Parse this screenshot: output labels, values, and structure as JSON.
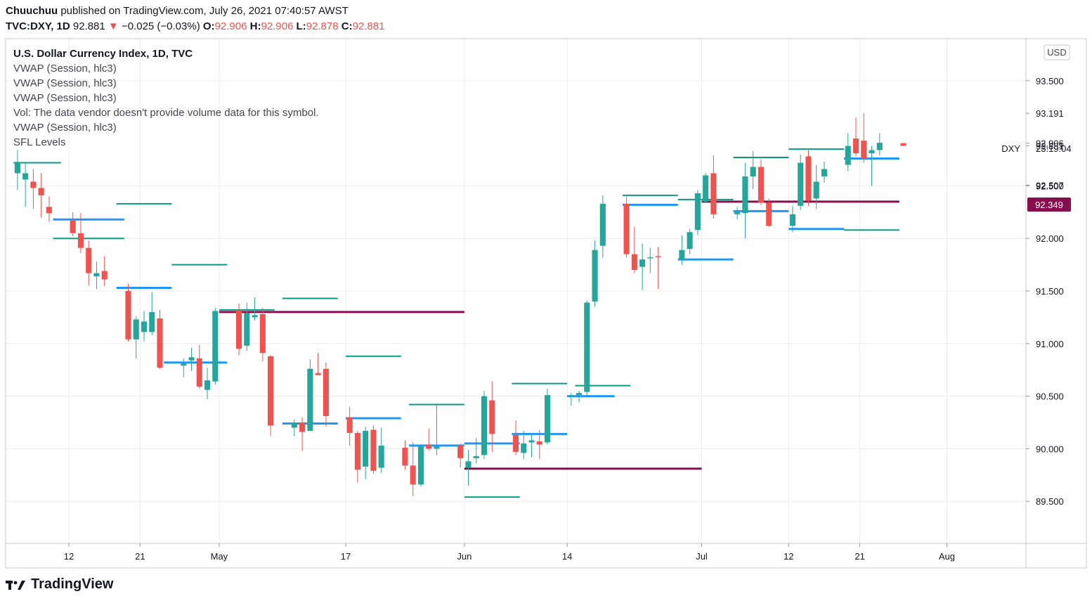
{
  "header": {
    "author": "Chuuchuu",
    "published_text": "published on TradingView.com, July 26, 2021 07:40:57 AWST",
    "symbol": "TVC:DXY, 1D",
    "last": "92.881",
    "change_arrow": "▼",
    "change": "−0.025 (−0.03%)",
    "o_label": "O:",
    "o_value": "92.906",
    "h_label": "H:",
    "h_value": "92.906",
    "l_label": "L:",
    "l_value": "92.878",
    "c_label": "C:",
    "c_value": "92.881"
  },
  "legend": [
    "U.S. Dollar Currency Index, 1D, TVC",
    "VWAP (Session, hlc3)",
    "VWAP (Session, hlc3)",
    "VWAP (Session, hlc3)",
    "Vol: The data vendor doesn't provide volume data for this symbol.",
    "VWAP (Session, hlc3)",
    "SFL Levels"
  ],
  "footer": {
    "brand": "TradingView",
    "logo_icon": "tradingview-logo-icon"
  },
  "colors": {
    "up": "#26a69a",
    "down": "#ef5350",
    "vwap_green": "#089981",
    "vwap_blue": "#2196f3",
    "vwap_maroon": "#880e4f",
    "grid": "#e9ecf0"
  },
  "chart_data": {
    "type": "candlestick",
    "currency_label": "USD",
    "symbol_label": "DXY",
    "countdown": "23:19:04",
    "current_price_label": "92.349",
    "ylim": [
      89.1,
      93.9
    ],
    "yticks": [
      "93.500",
      "93.191",
      "92.906",
      "92.881",
      "92.507",
      "92.500",
      "92.000",
      "91.500",
      "91.000",
      "90.500",
      "90.000",
      "89.500"
    ],
    "xlim": [
      "2021-04-04",
      "2021-08-11"
    ],
    "xticks": [
      {
        "date": "2021-04-12",
        "label": "12"
      },
      {
        "date": "2021-04-21",
        "label": "21"
      },
      {
        "date": "2021-05-01",
        "label": "May"
      },
      {
        "date": "2021-05-17",
        "label": "17"
      },
      {
        "date": "2021-06-01",
        "label": "Jun"
      },
      {
        "date": "2021-06-14",
        "label": "14"
      },
      {
        "date": "2021-07-01",
        "label": "Jul"
      },
      {
        "date": "2021-07-12",
        "label": "12"
      },
      {
        "date": "2021-07-21",
        "label": "21"
      },
      {
        "date": "2021-08-01",
        "label": "Aug"
      }
    ],
    "candles": [
      {
        "date": "2021-04-05",
        "o": 92.62,
        "h": 92.84,
        "l": 92.46,
        "c": 92.72
      },
      {
        "date": "2021-04-06",
        "o": 92.56,
        "h": 92.72,
        "l": 92.3,
        "c": 92.62
      },
      {
        "date": "2021-04-07",
        "o": 92.54,
        "h": 92.66,
        "l": 92.28,
        "c": 92.48
      },
      {
        "date": "2021-04-08",
        "o": 92.48,
        "h": 92.62,
        "l": 92.2,
        "c": 92.41
      },
      {
        "date": "2021-04-09",
        "o": 92.3,
        "h": 92.4,
        "l": 92.16,
        "c": 92.24
      },
      {
        "date": "2021-04-12",
        "o": 92.17,
        "h": 92.25,
        "l": 92.02,
        "c": 92.05
      },
      {
        "date": "2021-04-13",
        "o": 92.05,
        "h": 92.24,
        "l": 91.86,
        "c": 91.91
      },
      {
        "date": "2021-04-14",
        "o": 91.91,
        "h": 91.98,
        "l": 91.55,
        "c": 91.67
      },
      {
        "date": "2021-04-15",
        "o": 91.64,
        "h": 91.78,
        "l": 91.52,
        "c": 91.67
      },
      {
        "date": "2021-04-16",
        "o": 91.69,
        "h": 91.83,
        "l": 91.55,
        "c": 91.61
      },
      {
        "date": "2021-04-19",
        "o": 91.5,
        "h": 91.57,
        "l": 91.02,
        "c": 91.04
      },
      {
        "date": "2021-04-20",
        "o": 91.04,
        "h": 91.26,
        "l": 90.86,
        "c": 91.23
      },
      {
        "date": "2021-04-21",
        "o": 91.11,
        "h": 91.31,
        "l": 91.02,
        "c": 91.21
      },
      {
        "date": "2021-04-22",
        "o": 91.11,
        "h": 91.49,
        "l": 91.08,
        "c": 91.3
      },
      {
        "date": "2021-04-23",
        "o": 91.24,
        "h": 91.32,
        "l": 90.76,
        "c": 90.77
      },
      {
        "date": "2021-04-26",
        "o": 90.79,
        "h": 90.86,
        "l": 90.68,
        "c": 90.81
      },
      {
        "date": "2021-04-27",
        "o": 90.84,
        "h": 90.96,
        "l": 90.74,
        "c": 90.87
      },
      {
        "date": "2021-04-28",
        "o": 90.86,
        "h": 90.99,
        "l": 90.57,
        "c": 90.59
      },
      {
        "date": "2021-04-29",
        "o": 90.56,
        "h": 90.77,
        "l": 90.47,
        "c": 90.65
      },
      {
        "date": "2021-04-30",
        "o": 90.64,
        "h": 91.34,
        "l": 90.61,
        "c": 91.31
      },
      {
        "date": "2021-05-03",
        "o": 91.32,
        "h": 91.38,
        "l": 90.89,
        "c": 90.95
      },
      {
        "date": "2021-05-04",
        "o": 90.98,
        "h": 91.39,
        "l": 90.93,
        "c": 91.29
      },
      {
        "date": "2021-05-05",
        "o": 91.25,
        "h": 91.44,
        "l": 91.22,
        "c": 91.27
      },
      {
        "date": "2021-05-06",
        "o": 91.28,
        "h": 91.34,
        "l": 90.83,
        "c": 90.91
      },
      {
        "date": "2021-05-07",
        "o": 90.88,
        "h": 90.89,
        "l": 90.12,
        "c": 90.22
      },
      {
        "date": "2021-05-10",
        "o": 90.2,
        "h": 90.28,
        "l": 90.12,
        "c": 90.25
      },
      {
        "date": "2021-05-11",
        "o": 90.25,
        "h": 90.3,
        "l": 89.98,
        "c": 90.16
      },
      {
        "date": "2021-05-12",
        "o": 90.17,
        "h": 90.85,
        "l": 90.17,
        "c": 90.76
      },
      {
        "date": "2021-05-13",
        "o": 90.72,
        "h": 90.91,
        "l": 90.7,
        "c": 90.7
      },
      {
        "date": "2021-05-14",
        "o": 90.76,
        "h": 90.82,
        "l": 90.21,
        "c": 90.31
      },
      {
        "date": "2021-05-17",
        "o": 90.3,
        "h": 90.4,
        "l": 90.03,
        "c": 90.15
      },
      {
        "date": "2021-05-18",
        "o": 90.15,
        "h": 90.17,
        "l": 89.68,
        "c": 89.8
      },
      {
        "date": "2021-05-19",
        "o": 89.83,
        "h": 90.21,
        "l": 89.71,
        "c": 90.17
      },
      {
        "date": "2021-05-20",
        "o": 90.18,
        "h": 90.22,
        "l": 89.76,
        "c": 89.79
      },
      {
        "date": "2021-05-21",
        "o": 89.82,
        "h": 90.2,
        "l": 89.77,
        "c": 90.03
      },
      {
        "date": "2021-05-24",
        "o": 90.01,
        "h": 90.08,
        "l": 89.8,
        "c": 89.84
      },
      {
        "date": "2021-05-25",
        "o": 89.84,
        "h": 90.06,
        "l": 89.55,
        "c": 89.66
      },
      {
        "date": "2021-05-26",
        "o": 89.66,
        "h": 90.04,
        "l": 89.64,
        "c": 90.02
      },
      {
        "date": "2021-05-27",
        "o": 90.04,
        "h": 90.19,
        "l": 89.98,
        "c": 90.0
      },
      {
        "date": "2021-05-28",
        "o": 90.0,
        "h": 90.43,
        "l": 89.94,
        "c": 90.02
      },
      {
        "date": "2021-05-31",
        "o": 90.03,
        "h": 90.05,
        "l": 89.82,
        "c": 89.91
      },
      {
        "date": "2021-06-01",
        "o": 89.82,
        "h": 89.99,
        "l": 89.65,
        "c": 89.88
      },
      {
        "date": "2021-06-02",
        "o": 89.91,
        "h": 90.1,
        "l": 89.86,
        "c": 89.93
      },
      {
        "date": "2021-06-03",
        "o": 89.94,
        "h": 90.55,
        "l": 89.9,
        "c": 90.5
      },
      {
        "date": "2021-06-04",
        "o": 90.46,
        "h": 90.64,
        "l": 89.97,
        "c": 90.14
      },
      {
        "date": "2021-06-07",
        "o": 90.13,
        "h": 90.27,
        "l": 89.94,
        "c": 89.97
      },
      {
        "date": "2021-06-08",
        "o": 89.96,
        "h": 90.17,
        "l": 89.9,
        "c": 90.05
      },
      {
        "date": "2021-06-09",
        "o": 90.06,
        "h": 90.13,
        "l": 89.92,
        "c": 90.08
      },
      {
        "date": "2021-06-10",
        "o": 90.07,
        "h": 90.18,
        "l": 89.9,
        "c": 90.04
      },
      {
        "date": "2021-06-11",
        "o": 90.06,
        "h": 90.57,
        "l": 90.04,
        "c": 90.51
      },
      {
        "date": "2021-06-14",
        "o": 90.5,
        "h": 90.53,
        "l": 90.41,
        "c": 90.51
      },
      {
        "date": "2021-06-15",
        "o": 90.51,
        "h": 90.55,
        "l": 90.44,
        "c": 90.53
      },
      {
        "date": "2021-06-16",
        "o": 90.54,
        "h": 91.41,
        "l": 90.5,
        "c": 91.39
      },
      {
        "date": "2021-06-17",
        "o": 91.4,
        "h": 91.98,
        "l": 91.35,
        "c": 91.89
      },
      {
        "date": "2021-06-18",
        "o": 91.93,
        "h": 92.41,
        "l": 91.82,
        "c": 92.33
      },
      {
        "date": "2021-06-21",
        "o": 92.33,
        "h": 92.4,
        "l": 91.82,
        "c": 91.85
      },
      {
        "date": "2021-06-22",
        "o": 91.85,
        "h": 92.11,
        "l": 91.67,
        "c": 91.7
      },
      {
        "date": "2021-06-23",
        "o": 91.73,
        "h": 91.95,
        "l": 91.51,
        "c": 91.8
      },
      {
        "date": "2021-06-24",
        "o": 91.81,
        "h": 91.91,
        "l": 91.67,
        "c": 91.82
      },
      {
        "date": "2021-06-25",
        "o": 91.83,
        "h": 91.92,
        "l": 91.52,
        "c": 91.82
      },
      {
        "date": "2021-06-28",
        "o": 91.8,
        "h": 92.03,
        "l": 91.75,
        "c": 91.89
      },
      {
        "date": "2021-06-29",
        "o": 91.9,
        "h": 92.09,
        "l": 91.85,
        "c": 92.06
      },
      {
        "date": "2021-06-30",
        "o": 92.08,
        "h": 92.46,
        "l": 92.03,
        "c": 92.43
      },
      {
        "date": "2021-07-01",
        "o": 92.35,
        "h": 92.62,
        "l": 92.34,
        "c": 92.6
      },
      {
        "date": "2021-07-02",
        "o": 92.62,
        "h": 92.79,
        "l": 92.19,
        "c": 92.23
      },
      {
        "date": "2021-07-05",
        "o": 92.23,
        "h": 92.3,
        "l": 92.18,
        "c": 92.25
      },
      {
        "date": "2021-07-06",
        "o": 92.24,
        "h": 92.72,
        "l": 92.0,
        "c": 92.59
      },
      {
        "date": "2021-07-07",
        "o": 92.59,
        "h": 92.83,
        "l": 92.47,
        "c": 92.68
      },
      {
        "date": "2021-07-08",
        "o": 92.68,
        "h": 92.75,
        "l": 92.32,
        "c": 92.34
      },
      {
        "date": "2021-07-09",
        "o": 92.34,
        "h": 92.38,
        "l": 92.11,
        "c": 92.12
      },
      {
        "date": "2021-07-12",
        "o": 92.12,
        "h": 92.31,
        "l": 92.06,
        "c": 92.23
      },
      {
        "date": "2021-07-13",
        "o": 92.31,
        "h": 92.8,
        "l": 92.27,
        "c": 92.72
      },
      {
        "date": "2021-07-14",
        "o": 92.78,
        "h": 92.84,
        "l": 92.31,
        "c": 92.36
      },
      {
        "date": "2021-07-15",
        "o": 92.38,
        "h": 92.7,
        "l": 92.28,
        "c": 92.54
      },
      {
        "date": "2021-07-16",
        "o": 92.59,
        "h": 92.73,
        "l": 92.53,
        "c": 92.66
      },
      {
        "date": "2021-07-19",
        "o": 92.7,
        "h": 93.0,
        "l": 92.64,
        "c": 92.88
      },
      {
        "date": "2021-07-20",
        "o": 92.95,
        "h": 93.15,
        "l": 92.78,
        "c": 92.81
      },
      {
        "date": "2021-07-21",
        "o": 92.93,
        "h": 93.19,
        "l": 92.72,
        "c": 92.76
      },
      {
        "date": "2021-07-22",
        "o": 92.81,
        "h": 92.88,
        "l": 92.5,
        "c": 92.84
      },
      {
        "date": "2021-07-23",
        "o": 92.84,
        "h": 93.0,
        "l": 92.79,
        "c": 92.91
      },
      {
        "date": "2021-07-26",
        "o": 92.906,
        "h": 92.906,
        "l": 92.878,
        "c": 92.881
      }
    ],
    "vwap_lines": [
      {
        "color": "green",
        "from": "2021-04-05",
        "to": "2021-04-10",
        "y": 92.72
      },
      {
        "color": "green",
        "from": "2021-04-10",
        "to": "2021-04-18",
        "y": 92.0
      },
      {
        "color": "green",
        "from": "2021-04-18",
        "to": "2021-04-24",
        "y": 92.33
      },
      {
        "color": "green",
        "from": "2021-04-25",
        "to": "2021-05-01",
        "y": 91.75
      },
      {
        "color": "green",
        "from": "2021-05-01",
        "to": "2021-05-07",
        "y": 91.32
      },
      {
        "color": "green",
        "from": "2021-05-09",
        "to": "2021-05-15",
        "y": 91.43
      },
      {
        "color": "green",
        "from": "2021-05-17",
        "to": "2021-05-23",
        "y": 90.88
      },
      {
        "color": "green",
        "from": "2021-05-25",
        "to": "2021-05-31",
        "y": 90.42
      },
      {
        "color": "green",
        "from": "2021-06-01",
        "to": "2021-06-07",
        "y": 89.54
      },
      {
        "color": "green",
        "from": "2021-06-07",
        "to": "2021-06-13",
        "y": 90.62
      },
      {
        "color": "green",
        "from": "2021-06-15",
        "to": "2021-06-21",
        "y": 90.6
      },
      {
        "color": "green",
        "from": "2021-06-21",
        "to": "2021-06-27",
        "y": 92.41
      },
      {
        "color": "green",
        "from": "2021-06-28",
        "to": "2021-07-04",
        "y": 92.37
      },
      {
        "color": "green",
        "from": "2021-07-05",
        "to": "2021-07-11",
        "y": 92.77
      },
      {
        "color": "green",
        "from": "2021-07-12",
        "to": "2021-07-18",
        "y": 92.85
      },
      {
        "color": "green",
        "from": "2021-07-19",
        "to": "2021-07-25",
        "y": 92.08
      },
      {
        "color": "blue",
        "from": "2021-04-10",
        "to": "2021-04-18",
        "y": 92.18
      },
      {
        "color": "blue",
        "from": "2021-04-18",
        "to": "2021-04-24",
        "y": 91.53
      },
      {
        "color": "blue",
        "from": "2021-04-24",
        "to": "2021-05-01",
        "y": 90.82
      },
      {
        "color": "blue",
        "from": "2021-05-09",
        "to": "2021-05-15",
        "y": 90.24
      },
      {
        "color": "blue",
        "from": "2021-05-17",
        "to": "2021-05-23",
        "y": 90.29
      },
      {
        "color": "blue",
        "from": "2021-05-25",
        "to": "2021-05-31",
        "y": 90.03
      },
      {
        "color": "blue",
        "from": "2021-06-01",
        "to": "2021-06-07",
        "y": 90.05
      },
      {
        "color": "blue",
        "from": "2021-06-07",
        "to": "2021-06-13",
        "y": 90.14
      },
      {
        "color": "blue",
        "from": "2021-06-14",
        "to": "2021-06-19",
        "y": 90.5
      },
      {
        "color": "blue",
        "from": "2021-06-21",
        "to": "2021-06-27",
        "y": 92.32
      },
      {
        "color": "blue",
        "from": "2021-06-28",
        "to": "2021-07-04",
        "y": 91.8
      },
      {
        "color": "blue",
        "from": "2021-07-05",
        "to": "2021-07-11",
        "y": 92.26
      },
      {
        "color": "blue",
        "from": "2021-07-12",
        "to": "2021-07-18",
        "y": 92.09
      },
      {
        "color": "blue",
        "from": "2021-07-19",
        "to": "2021-07-25",
        "y": 92.76
      },
      {
        "color": "maroon",
        "from": "2021-05-01",
        "to": "2021-05-31",
        "y": 91.3
      },
      {
        "color": "maroon",
        "from": "2021-06-01",
        "to": "2021-06-30",
        "y": 89.81
      },
      {
        "color": "maroon",
        "from": "2021-07-01",
        "to": "2021-07-25",
        "y": 92.35
      }
    ]
  }
}
